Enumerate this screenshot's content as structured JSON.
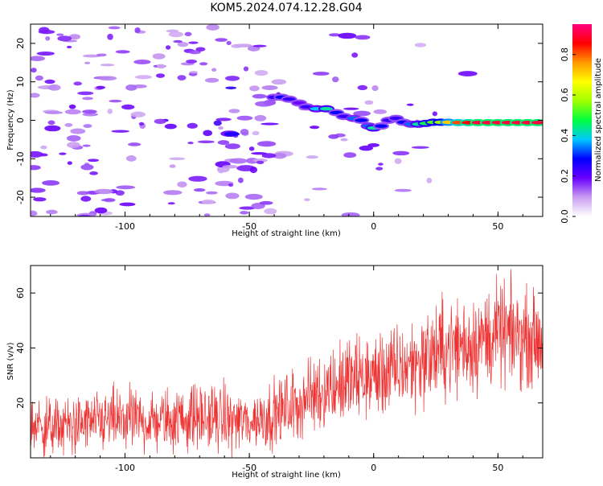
{
  "chart_data": [
    {
      "type": "heatmap",
      "title": "KOM5.2024.074.12.28.G04",
      "xlabel": "Height of straight line (km)",
      "ylabel": "Frequency (Hz)",
      "xlim": [
        -138,
        68
      ],
      "ylim": [
        -25,
        25
      ],
      "x_ticks": [
        -100,
        -50,
        0,
        50
      ],
      "y_ticks": [
        -20,
        -10,
        0,
        10,
        20
      ],
      "colorbar": {
        "label": "Normalized spectral amplitude",
        "range": [
          0,
          0.95
        ],
        "ticks": [
          0.0,
          0.2,
          0.4,
          0.6,
          0.8
        ],
        "colormap": "rainbow"
      },
      "ridge": [
        {
          "x": -40,
          "y": 6.0,
          "v": 0.25
        },
        {
          "x": -37,
          "y": 6.0,
          "v": 0.3
        },
        {
          "x": -34,
          "y": 5.5,
          "v": 0.25
        },
        {
          "x": -30,
          "y": 4.5,
          "v": 0.2
        },
        {
          "x": -27,
          "y": 3.5,
          "v": 0.25
        },
        {
          "x": -23,
          "y": 3.0,
          "v": 0.4
        },
        {
          "x": -19,
          "y": 3.0,
          "v": 0.45
        },
        {
          "x": -15,
          "y": 2.0,
          "v": 0.3
        },
        {
          "x": -12,
          "y": 1.0,
          "v": 0.25
        },
        {
          "x": -8,
          "y": 0.5,
          "v": 0.35
        },
        {
          "x": -5,
          "y": 0.0,
          "v": 0.3
        },
        {
          "x": -2,
          "y": -1.5,
          "v": 0.35
        },
        {
          "x": 0,
          "y": -2.0,
          "v": 0.45
        },
        {
          "x": 3,
          "y": -1.5,
          "v": 0.3
        },
        {
          "x": 6,
          "y": 0.0,
          "v": 0.25
        },
        {
          "x": 9,
          "y": 0.5,
          "v": 0.25
        },
        {
          "x": 12,
          "y": -0.5,
          "v": 0.3
        },
        {
          "x": 15,
          "y": -1.0,
          "v": 0.35
        },
        {
          "x": 18,
          "y": -1.0,
          "v": 0.45
        },
        {
          "x": 21,
          "y": -0.8,
          "v": 0.5
        },
        {
          "x": 24,
          "y": -0.5,
          "v": 0.55
        },
        {
          "x": 27,
          "y": -0.5,
          "v": 0.6
        },
        {
          "x": 30,
          "y": -0.5,
          "v": 0.75
        },
        {
          "x": 34,
          "y": -0.6,
          "v": 0.85
        },
        {
          "x": 38,
          "y": -0.6,
          "v": 0.9
        },
        {
          "x": 42,
          "y": -0.6,
          "v": 0.95
        },
        {
          "x": 46,
          "y": -0.6,
          "v": 0.95
        },
        {
          "x": 50,
          "y": -0.6,
          "v": 0.95
        },
        {
          "x": 54,
          "y": -0.6,
          "v": 0.95
        },
        {
          "x": 58,
          "y": -0.6,
          "v": 0.95
        },
        {
          "x": 62,
          "y": -0.6,
          "v": 0.95
        },
        {
          "x": 66,
          "y": -0.6,
          "v": 0.95
        }
      ]
    },
    {
      "type": "line",
      "title": "",
      "xlabel": "Height of straight line (km)",
      "ylabel": "SNR (v/v)",
      "xlim": [
        -138,
        68
      ],
      "ylim": [
        0,
        70
      ],
      "x_ticks": [
        -100,
        -50,
        0,
        50
      ],
      "y_ticks": [
        20,
        40,
        60
      ],
      "color": "#ee3333",
      "series": [
        {
          "x": [
            -138,
            -130,
            -120,
            -110,
            -100,
            -90,
            -80,
            -70,
            -60,
            -50,
            -40,
            -30,
            -20,
            -10,
            0,
            10,
            20,
            30,
            40,
            50,
            60,
            68
          ],
          "values": [
            12,
            11,
            12,
            13,
            14,
            13,
            14,
            15,
            14,
            13,
            16,
            20,
            25,
            28,
            30,
            32,
            36,
            40,
            42,
            45,
            44,
            43
          ],
          "spread": [
            8,
            8,
            8,
            8,
            9,
            8,
            9,
            9,
            9,
            8,
            9,
            10,
            11,
            12,
            12,
            12,
            13,
            14,
            14,
            14,
            13,
            12
          ]
        }
      ]
    }
  ]
}
